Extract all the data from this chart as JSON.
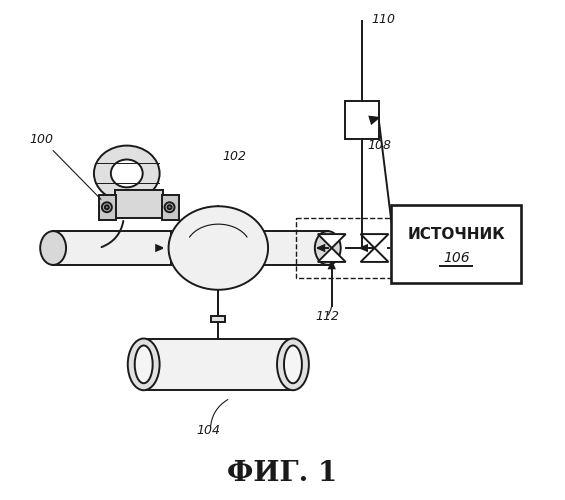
{
  "bg_color": "#ffffff",
  "lc": "#1a1a1a",
  "fig_label": "ФИГ. 1",
  "source_label_line1": "ИСТОЧНИК",
  "source_label_line2": "106"
}
